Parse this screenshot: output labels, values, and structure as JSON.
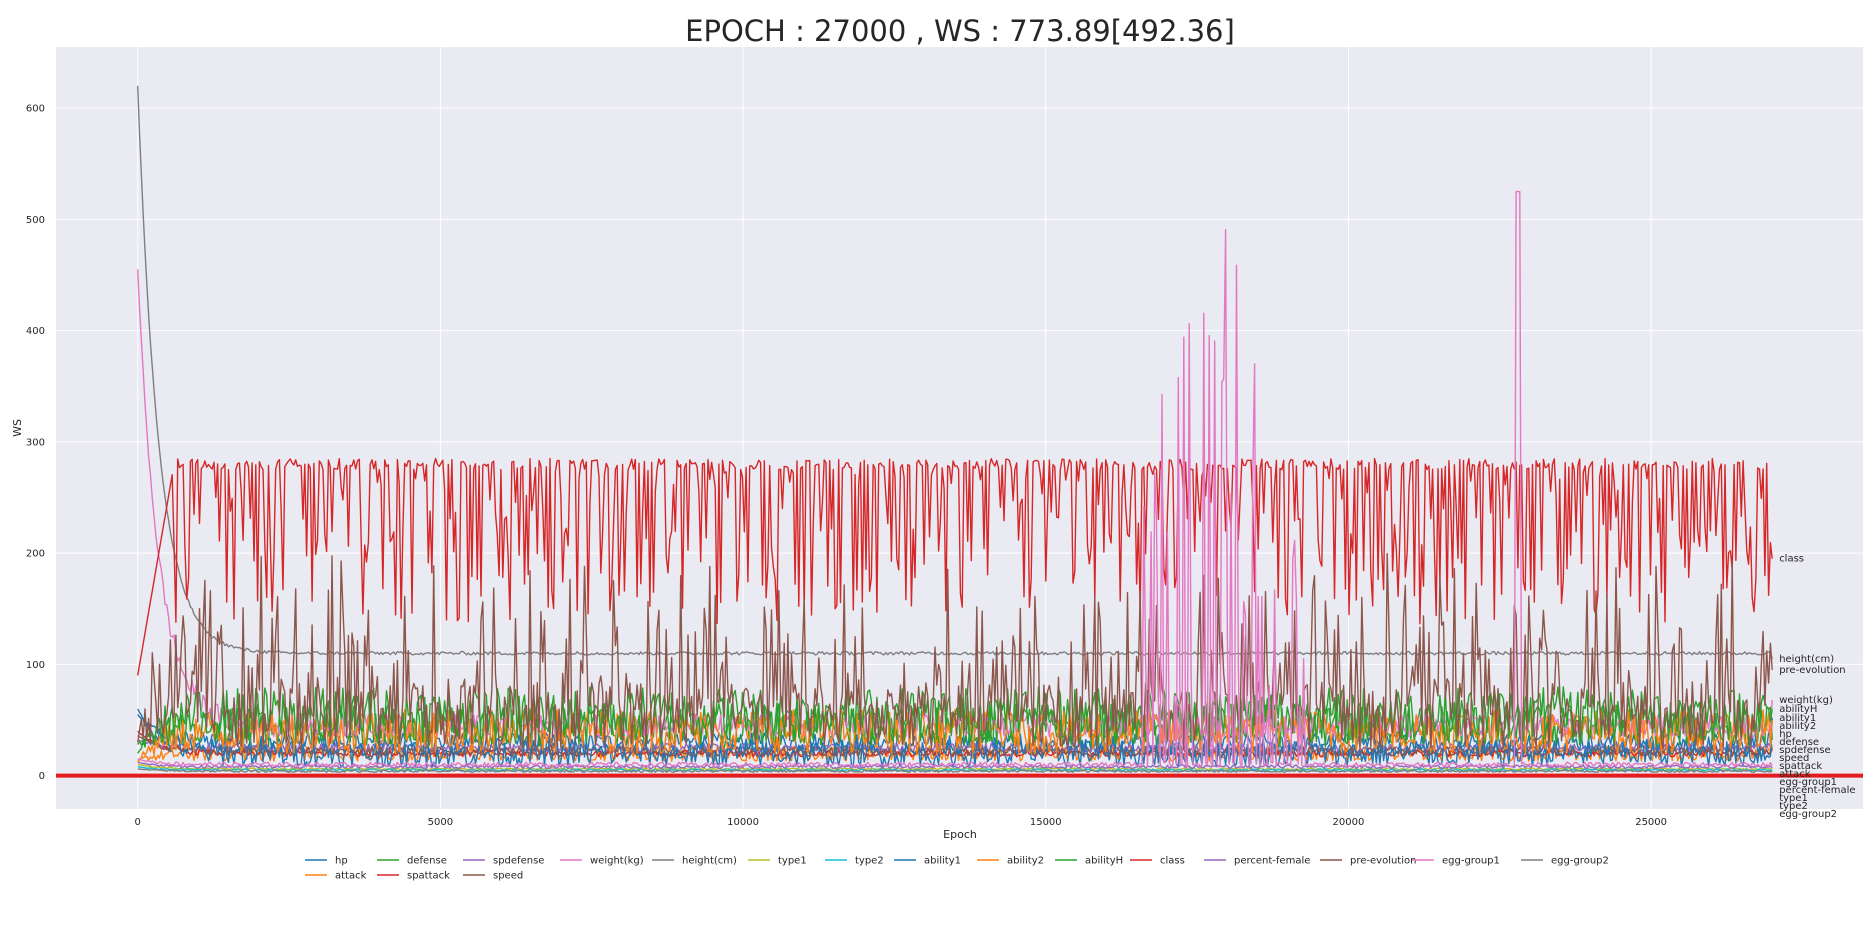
{
  "chart_data": {
    "type": "line",
    "title": "EPOCH : 27000 , WS : 773.89[492.36]",
    "xlabel": "Epoch",
    "ylabel": "WS",
    "xlim": [
      -1350,
      28500
    ],
    "ylim": [
      -30,
      655
    ],
    "x_ticks": [
      0,
      5000,
      10000,
      15000,
      20000,
      25000
    ],
    "y_ticks": [
      0,
      100,
      200,
      300,
      400,
      500,
      600
    ],
    "grid": true,
    "legend_position": "bottom-center",
    "x_end": 27000,
    "reference_line": {
      "value": 0,
      "color": "#e41a1c"
    },
    "series": [
      {
        "name": "hp",
        "color": "#1f77b4",
        "base": 30,
        "amp": 12,
        "spike": 0,
        "noise": "medium",
        "start": 55,
        "end": 38,
        "end_label": "hp"
      },
      {
        "name": "attack",
        "color": "#ff7f0e",
        "base": 20,
        "amp": 10,
        "spike": 0,
        "noise": "medium",
        "start": 14,
        "end": 22,
        "end_label": "attack"
      },
      {
        "name": "defense",
        "color": "#2ca02c",
        "base": 45,
        "amp": 20,
        "spike": 0,
        "noise": "high",
        "start": 28,
        "end": 32,
        "end_label": "defense"
      },
      {
        "name": "spattack",
        "color": "#d62728",
        "base": 20,
        "amp": 6,
        "spike": 0,
        "noise": "low",
        "start": 40,
        "end": 24,
        "end_label": "spattack"
      },
      {
        "name": "spdefense",
        "color": "#9467bd",
        "base": 25,
        "amp": 8,
        "spike": 0,
        "noise": "low",
        "start": 32,
        "end": 28,
        "end_label": "spdefense"
      },
      {
        "name": "speed",
        "color": "#8c564b",
        "base": 22,
        "amp": 8,
        "spike": 0,
        "noise": "low",
        "start": 36,
        "end": 26,
        "end_label": "speed"
      },
      {
        "name": "weight(kg)",
        "color": "#e377c2",
        "base": 45,
        "amp": 15,
        "spike": 0,
        "noise": "medium",
        "start": 455,
        "end": 68,
        "end_label": "weight(kg)"
      },
      {
        "name": "height(cm)",
        "color": "#7f7f7f",
        "base": 110,
        "amp": 3,
        "spike": 0,
        "noise": "low",
        "start": 620,
        "end": 105,
        "end_label": "height(cm)"
      },
      {
        "name": "type1",
        "color": "#bcbd22",
        "base": 6,
        "amp": 2,
        "spike": 0,
        "noise": "low",
        "start": 10,
        "end": 6,
        "end_label": "type1"
      },
      {
        "name": "type2",
        "color": "#17becf",
        "base": 5,
        "amp": 2,
        "spike": 0,
        "noise": "low",
        "start": 8,
        "end": 5,
        "end_label": "type2"
      },
      {
        "name": "ability1",
        "color": "#1f77b4",
        "base": 20,
        "amp": 12,
        "spike": 0,
        "noise": "high",
        "start": 60,
        "end": 52,
        "end_label": "ability1"
      },
      {
        "name": "ability2",
        "color": "#ff7f0e",
        "base": 40,
        "amp": 20,
        "spike": 0,
        "noise": "high",
        "start": 12,
        "end": 50,
        "end_label": "ability2"
      },
      {
        "name": "abilityH",
        "color": "#2ca02c",
        "base": 55,
        "amp": 25,
        "spike": 0,
        "noise": "high",
        "start": 20,
        "end": 60,
        "end_label": "abilityH"
      },
      {
        "name": "class",
        "color": "#d62728",
        "base": 280,
        "amp": 10,
        "spike": 140,
        "noise": "spiky-down",
        "start": 90,
        "end": 195,
        "end_label": "class"
      },
      {
        "name": "percent-female",
        "color": "#9467bd",
        "base": 8,
        "amp": 3,
        "spike": 0,
        "noise": "low",
        "start": 12,
        "end": 7,
        "end_label": "percent-female"
      },
      {
        "name": "pre-evolution",
        "color": "#8c564b",
        "base": 60,
        "amp": 60,
        "spike": 120,
        "noise": "spiky-up",
        "start": 30,
        "end": 95,
        "end_label": "pre-evolution"
      },
      {
        "name": "egg-group1",
        "color": "#e377c2",
        "base": 10,
        "amp": 4,
        "spike": 550,
        "noise": "bursts",
        "start": 15,
        "end": 9,
        "end_label": "egg-group1"
      },
      {
        "name": "egg-group2",
        "color": "#7f7f7f",
        "base": 4,
        "amp": 2,
        "spike": 0,
        "noise": "low",
        "start": 6,
        "end": 4,
        "end_label": "egg-group2"
      }
    ]
  }
}
